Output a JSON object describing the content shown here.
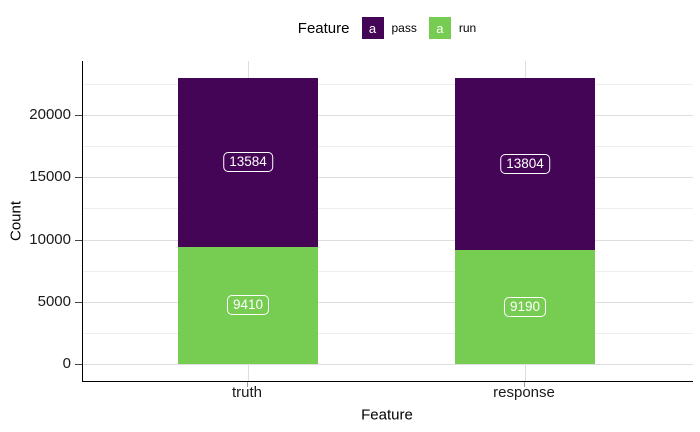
{
  "chart_data": {
    "type": "bar",
    "stacked": true,
    "xlabel": "Feature",
    "ylabel": "Count",
    "categories": [
      "truth",
      "response"
    ],
    "series": [
      {
        "name": "pass",
        "color": "#440556",
        "values": [
          13584,
          13804
        ]
      },
      {
        "name": "run",
        "color": "#77cd52",
        "values": [
          9410,
          9190
        ]
      }
    ],
    "stack_order_bottom_to_top": [
      "run",
      "pass"
    ],
    "totals": [
      22994,
      22994
    ],
    "y_ticks": [
      0,
      5000,
      10000,
      15000,
      20000
    ],
    "y_minor_ticks": [
      2500,
      7500,
      12500,
      17500,
      22500
    ],
    "ylim": [
      0,
      24150
    ],
    "grid": true,
    "legend": {
      "title": "Feature",
      "position": "top",
      "key_glyph": "a",
      "entries": [
        {
          "label": "pass",
          "color": "#440556"
        },
        {
          "label": "run",
          "color": "#77cd52"
        }
      ]
    }
  },
  "colors": {
    "background": "#ffffff",
    "axis_line": "#000000",
    "grid_major": "#dedede",
    "grid_minor": "#eeeeee",
    "y_tick": "#444444",
    "x_tick": "#9a9a9a",
    "text": "#1a1a1a",
    "bar_label_text": "#ffffff",
    "bar_label_border": "#ffffff"
  }
}
